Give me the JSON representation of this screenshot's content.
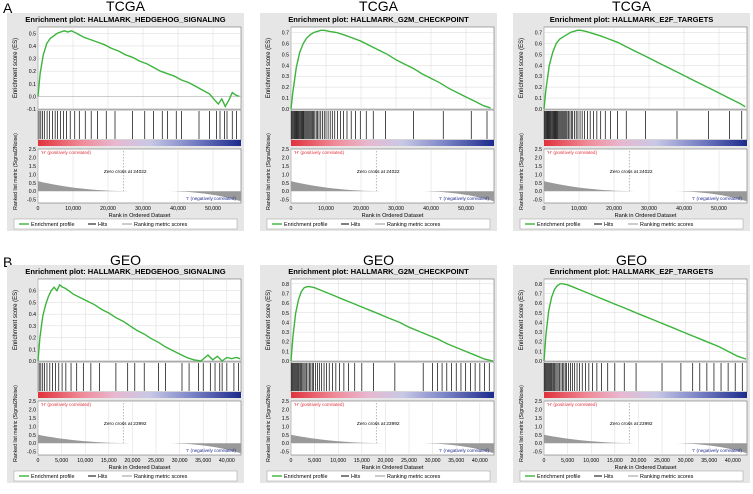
{
  "rows": [
    {
      "label": "A",
      "source": "TCGA"
    },
    {
      "label": "B",
      "source": "GEO"
    }
  ],
  "common": {
    "es_ylabel": "Enrichment score (ES)",
    "rank_ylabel": "Ranked list metric (Signal2Noise)",
    "xlabel": "Rank in Ordered Dataset",
    "pos_label": "'H' (positively correlated)",
    "neg_label": "'I' (negatively correlated)",
    "legend": [
      "Enrichment profile",
      "Hits",
      "Ranking metric scores"
    ],
    "colors": {
      "es_line": "#3cb43c",
      "hits": "#000000",
      "metric": "#9a9a9a",
      "pos": "#e0323c",
      "neg": "#1c2a8c",
      "panel_bg": "#e6e6e6"
    }
  },
  "chart_data": [
    {
      "type": "line",
      "row": 0,
      "col": 0,
      "source": "TCGA",
      "title": "Enrichment plot: HALLMARK_HEDGEHOG_SIGNALING",
      "zero_cross": "Zero cross at 24022",
      "xlim": [
        0,
        58000
      ],
      "x_ticks": [
        0,
        10000,
        20000,
        30000,
        40000,
        50000
      ],
      "x_tick_labels": [
        "0",
        "10,000",
        "20,000",
        "30,000",
        "40,000",
        "50,000"
      ],
      "ylim": [
        -0.1,
        0.55
      ],
      "y_ticks": [
        -0.1,
        0.0,
        0.1,
        0.2,
        0.3,
        0.4,
        0.5
      ],
      "y_tick_labels": [
        "-0.1",
        "0.0",
        "0.1",
        "0.2",
        "0.3",
        "0.4",
        "0.5"
      ],
      "es_x": [
        0,
        600,
        1500,
        2500,
        3500,
        4500,
        5500,
        6500,
        7500,
        8500,
        9500,
        11000,
        13000,
        15000,
        17000,
        19000,
        21000,
        23000,
        25000,
        27000,
        29000,
        31000,
        33000,
        35000,
        37000,
        39000,
        41000,
        43000,
        45000,
        47000,
        49000,
        50500,
        51500,
        52500,
        53500,
        54500,
        55500,
        56500,
        57500
      ],
      "es_y": [
        0,
        0.18,
        0.33,
        0.42,
        0.46,
        0.48,
        0.5,
        0.51,
        0.52,
        0.51,
        0.52,
        0.5,
        0.47,
        0.45,
        0.43,
        0.41,
        0.38,
        0.36,
        0.33,
        0.31,
        0.28,
        0.26,
        0.23,
        0.2,
        0.18,
        0.16,
        0.13,
        0.11,
        0.08,
        0.05,
        0.02,
        -0.03,
        -0.06,
        -0.02,
        -0.08,
        -0.03,
        0.03,
        0.01,
        0.0
      ],
      "hits": [
        300,
        800,
        1300,
        1800,
        2600,
        3300,
        4100,
        4900,
        5600,
        6400,
        7300,
        8100,
        9200,
        10500,
        11800,
        13500,
        15200,
        17000,
        19500,
        22000,
        27000,
        30500,
        33000,
        35500,
        37000,
        39500,
        41000,
        46000,
        49000,
        51000,
        52000,
        53300,
        54000,
        55500,
        56700
      ],
      "rank_ylim": [
        -0.7,
        2.5
      ],
      "rank_ticks": [
        2.5,
        2.0,
        1.5,
        1.0,
        0.5,
        0.0,
        -0.5
      ],
      "rank_tick_labels": [
        "2.5",
        "2.0",
        "1.5",
        "1.0",
        "0.5",
        "0.0",
        "-0.5"
      ],
      "rank_start": 0.6,
      "rank_end": -0.6
    },
    {
      "type": "line",
      "row": 0,
      "col": 1,
      "source": "TCGA",
      "title": "Enrichment plot: HALLMARK_G2M_CHECKPOINT",
      "zero_cross": "Zero cross at 24022",
      "xlim": [
        0,
        58000
      ],
      "x_ticks": [
        0,
        10000,
        20000,
        30000,
        40000,
        50000
      ],
      "x_tick_labels": [
        "0",
        "10,000",
        "20,000",
        "30,000",
        "40,000",
        "50,000"
      ],
      "ylim": [
        0.0,
        0.75
      ],
      "y_ticks": [
        0.0,
        0.1,
        0.2,
        0.3,
        0.4,
        0.5,
        0.6,
        0.7
      ],
      "y_tick_labels": [
        "0.0",
        "0.1",
        "0.2",
        "0.3",
        "0.4",
        "0.5",
        "0.6",
        "0.7"
      ],
      "es_x": [
        0,
        500,
        1500,
        2500,
        3500,
        4500,
        5500,
        6500,
        7500,
        8500,
        9500,
        11000,
        13000,
        15000,
        17500,
        20000,
        22500,
        25000,
        27500,
        30000,
        32500,
        35000,
        37500,
        40000,
        42500,
        45000,
        47500,
        50000,
        52500,
        55000,
        57000
      ],
      "es_y": [
        0,
        0.15,
        0.38,
        0.52,
        0.6,
        0.65,
        0.68,
        0.7,
        0.71,
        0.72,
        0.72,
        0.71,
        0.7,
        0.68,
        0.65,
        0.62,
        0.58,
        0.54,
        0.5,
        0.45,
        0.41,
        0.37,
        0.32,
        0.28,
        0.24,
        0.19,
        0.15,
        0.11,
        0.07,
        0.03,
        0.01
      ],
      "hits": [
        200,
        450,
        700,
        950,
        1200,
        1450,
        1700,
        1950,
        2200,
        2450,
        2700,
        2950,
        3200,
        3450,
        3700,
        4000,
        4300,
        4600,
        4900,
        5200,
        5500,
        5800,
        6100,
        6400,
        6800,
        7200,
        7600,
        8000,
        8500,
        9000,
        9500,
        10000,
        10600,
        11200,
        11800,
        12500,
        13300,
        14100,
        15000,
        16000,
        17200,
        18400,
        19800,
        21500,
        23500,
        27000,
        35000,
        43500,
        51500,
        56000
      ],
      "rank_ylim": [
        -0.7,
        2.5
      ],
      "rank_ticks": [
        2.5,
        2.0,
        1.5,
        1.0,
        0.5,
        0.0,
        -0.5
      ],
      "rank_tick_labels": [
        "2.5",
        "2.0",
        "1.5",
        "1.0",
        "0.5",
        "0.0",
        "-0.5"
      ],
      "rank_start": 0.6,
      "rank_end": -0.6
    },
    {
      "type": "line",
      "row": 0,
      "col": 2,
      "source": "TCGA",
      "title": "Enrichment plot: HALLMARK_E2F_TARGETS",
      "zero_cross": "Zero cross at 24022",
      "xlim": [
        0,
        58000
      ],
      "x_ticks": [
        0,
        10000,
        20000,
        30000,
        40000,
        50000
      ],
      "x_tick_labels": [
        "0",
        "10,000",
        "20,000",
        "30,000",
        "40,000",
        "50,000"
      ],
      "ylim": [
        0.0,
        0.75
      ],
      "y_ticks": [
        0.0,
        0.1,
        0.2,
        0.3,
        0.4,
        0.5,
        0.6,
        0.7
      ],
      "y_tick_labels": [
        "0.0",
        "0.1",
        "0.2",
        "0.3",
        "0.4",
        "0.5",
        "0.6",
        "0.7"
      ],
      "es_x": [
        0,
        500,
        1500,
        2500,
        3500,
        4500,
        5500,
        6500,
        7500,
        8500,
        9500,
        10500,
        12000,
        14000,
        16000,
        18500,
        21000,
        23500,
        26000,
        28500,
        31000,
        33500,
        36000,
        38500,
        41000,
        43500,
        46000,
        48500,
        51000,
        53500,
        56000,
        57500
      ],
      "es_y": [
        0,
        0.17,
        0.4,
        0.52,
        0.6,
        0.64,
        0.66,
        0.68,
        0.7,
        0.71,
        0.72,
        0.72,
        0.71,
        0.69,
        0.67,
        0.64,
        0.61,
        0.57,
        0.53,
        0.49,
        0.45,
        0.41,
        0.37,
        0.33,
        0.29,
        0.25,
        0.21,
        0.17,
        0.13,
        0.09,
        0.05,
        0.02
      ],
      "hits": [
        200,
        400,
        650,
        900,
        1150,
        1400,
        1650,
        1900,
        2150,
        2400,
        2650,
        2900,
        3150,
        3400,
        3650,
        3900,
        4200,
        4500,
        4800,
        5100,
        5400,
        5700,
        6000,
        6300,
        6600,
        7000,
        7400,
        7800,
        8200,
        8700,
        9200,
        9700,
        10300,
        10900,
        11600,
        12400,
        13200,
        14100,
        15100,
        16200,
        17500,
        19000,
        21000,
        23500,
        29000,
        38000,
        47000,
        53000,
        56500
      ],
      "rank_ylim": [
        -0.7,
        2.5
      ],
      "rank_ticks": [
        2.5,
        2.0,
        1.5,
        1.0,
        0.5,
        0.0,
        -0.5
      ],
      "rank_tick_labels": [
        "2.5",
        "2.0",
        "1.5",
        "1.0",
        "0.5",
        "0.0",
        "-0.5"
      ],
      "rank_start": 0.6,
      "rank_end": -0.6
    },
    {
      "type": "line",
      "row": 1,
      "col": 0,
      "source": "GEO",
      "title": "Enrichment plot: HALLMARK_HEDGEHOG_SIGNALING",
      "zero_cross": "Zero cross at 23992",
      "xlim": [
        0,
        43000
      ],
      "x_ticks": [
        0,
        5000,
        10000,
        15000,
        20000,
        25000,
        30000,
        35000,
        40000
      ],
      "x_tick_labels": [
        "0",
        "5,000",
        "10,000",
        "15,000",
        "20,000",
        "25,000",
        "30,000",
        "35,000",
        "40,000"
      ],
      "ylim": [
        0.0,
        0.7
      ],
      "y_ticks": [
        0.0,
        0.1,
        0.2,
        0.3,
        0.4,
        0.5,
        0.6
      ],
      "y_tick_labels": [
        "0.0",
        "0.1",
        "0.2",
        "0.3",
        "0.4",
        "0.5",
        "0.6"
      ],
      "es_x": [
        0,
        400,
        1000,
        1600,
        2200,
        2800,
        3400,
        4000,
        4600,
        5200,
        5800,
        6500,
        7500,
        9000,
        10500,
        12000,
        13500,
        15000,
        16500,
        18000,
        19500,
        21000,
        22500,
        24000,
        25500,
        27000,
        28500,
        30000,
        31500,
        33000,
        34500,
        36000,
        37000,
        38000,
        39000,
        40000,
        41000,
        42000,
        42800
      ],
      "es_y": [
        0,
        0.2,
        0.38,
        0.48,
        0.55,
        0.6,
        0.63,
        0.6,
        0.65,
        0.63,
        0.62,
        0.6,
        0.57,
        0.54,
        0.51,
        0.48,
        0.44,
        0.41,
        0.37,
        0.34,
        0.3,
        0.26,
        0.23,
        0.19,
        0.16,
        0.12,
        0.09,
        0.06,
        0.03,
        0.01,
        0.0,
        0.05,
        0.01,
        0.04,
        0.0,
        0.03,
        0.02,
        0.03,
        0.02
      ],
      "hits": [
        250,
        600,
        1000,
        1400,
        1900,
        2500,
        3100,
        3700,
        4400,
        5100,
        5900,
        7000,
        8200,
        9600,
        11200,
        13000,
        16500,
        19000,
        20500,
        22500,
        25500,
        27000,
        30500,
        32000,
        34000,
        35000,
        36500,
        37500,
        38500,
        39000,
        40000,
        41500,
        42500
      ],
      "rank_ylim": [
        -0.7,
        2.5
      ],
      "rank_ticks": [
        2.5,
        2.0,
        1.5,
        1.0,
        0.5,
        0.0,
        -0.5
      ],
      "rank_tick_labels": [
        "2.5",
        "2.0",
        "1.5",
        "1.0",
        "0.5",
        "0.0",
        "-0.5"
      ],
      "rank_start": 0.5,
      "rank_end": -0.6
    },
    {
      "type": "line",
      "row": 1,
      "col": 1,
      "source": "GEO",
      "title": "Enrichment plot: HALLMARK_G2M_CHECKPOINT",
      "zero_cross": "Zero cross at 23992",
      "xlim": [
        0,
        43000
      ],
      "x_ticks": [
        0,
        5000,
        10000,
        15000,
        20000,
        25000,
        30000,
        35000,
        40000
      ],
      "x_tick_labels": [
        "0",
        "5,000",
        "10,000",
        "15,000",
        "20,000",
        "25,000",
        "30,000",
        "35,000",
        "40,000"
      ],
      "ylim": [
        0.0,
        0.85
      ],
      "y_ticks": [
        0.0,
        0.1,
        0.2,
        0.3,
        0.4,
        0.5,
        0.6,
        0.7,
        0.8
      ],
      "y_tick_labels": [
        "0.0",
        "0.1",
        "0.2",
        "0.3",
        "0.4",
        "0.5",
        "0.6",
        "0.7",
        "0.8"
      ],
      "es_x": [
        0,
        400,
        1000,
        1600,
        2200,
        2800,
        3400,
        4000,
        5000,
        6000,
        7500,
        9000,
        11000,
        13000,
        15000,
        17000,
        19000,
        21000,
        23000,
        25000,
        27000,
        29000,
        31000,
        33000,
        35000,
        37000,
        39000,
        41000,
        42800
      ],
      "es_y": [
        0,
        0.25,
        0.5,
        0.64,
        0.72,
        0.76,
        0.77,
        0.77,
        0.76,
        0.74,
        0.71,
        0.68,
        0.64,
        0.6,
        0.56,
        0.52,
        0.48,
        0.44,
        0.4,
        0.35,
        0.31,
        0.27,
        0.23,
        0.18,
        0.14,
        0.1,
        0.06,
        0.02,
        0.0
      ],
      "hits": [
        150,
        350,
        550,
        750,
        950,
        1150,
        1350,
        1550,
        1750,
        2000,
        2250,
        2500,
        2750,
        3000,
        3300,
        3600,
        3900,
        4200,
        4500,
        4800,
        5200,
        5600,
        6000,
        6500,
        7000,
        7500,
        8100,
        8800,
        9500,
        10300,
        11200,
        12200,
        13500,
        15000,
        17500,
        22000,
        28000,
        30000,
        31000,
        32000,
        33000,
        34000,
        35000,
        36000,
        37000,
        38000,
        39000,
        40000,
        41000,
        42000
      ],
      "rank_ylim": [
        -0.7,
        2.5
      ],
      "rank_ticks": [
        2.5,
        2.0,
        1.5,
        1.0,
        0.5,
        0.0,
        -0.5
      ],
      "rank_tick_labels": [
        "2.5",
        "2.0",
        "1.5",
        "1.0",
        "0.5",
        "0.0",
        "-0.5"
      ],
      "rank_start": 0.5,
      "rank_end": -0.6
    },
    {
      "type": "line",
      "row": 1,
      "col": 2,
      "source": "GEO",
      "title": "Enrichment plot: HALLMARK_E2F_TARGETS",
      "zero_cross": "Zero cross at 23992",
      "xlim": [
        0,
        43000
      ],
      "x_ticks": [
        0,
        5000,
        10000,
        15000,
        20000,
        25000,
        30000,
        35000,
        40000
      ],
      "x_tick_labels": [
        "0",
        "5,000",
        "10,000",
        "15,000",
        "20,000",
        "25,000",
        "30,000",
        "35,000",
        "40,000"
      ],
      "ylim": [
        0.0,
        0.85
      ],
      "y_ticks": [
        0.0,
        0.1,
        0.2,
        0.3,
        0.4,
        0.5,
        0.6,
        0.7,
        0.8
      ],
      "y_tick_labels": [
        "0.0",
        "0.1",
        "0.2",
        "0.3",
        "0.4",
        "0.5",
        "0.6",
        "0.7",
        "0.8"
      ],
      "es_x": [
        0,
        400,
        1000,
        1600,
        2200,
        2800,
        3400,
        4000,
        5000,
        6000,
        7500,
        9000,
        11000,
        13000,
        15000,
        17000,
        19000,
        21000,
        23000,
        25000,
        27000,
        29000,
        31000,
        33000,
        35000,
        37000,
        39000,
        41000,
        42800
      ],
      "es_y": [
        0,
        0.27,
        0.52,
        0.66,
        0.74,
        0.78,
        0.8,
        0.8,
        0.79,
        0.77,
        0.74,
        0.71,
        0.67,
        0.63,
        0.59,
        0.55,
        0.51,
        0.47,
        0.43,
        0.39,
        0.35,
        0.31,
        0.27,
        0.23,
        0.19,
        0.15,
        0.1,
        0.05,
        0.02
      ],
      "hits": [
        150,
        350,
        550,
        750,
        950,
        1150,
        1350,
        1550,
        1750,
        2000,
        2250,
        2500,
        2750,
        3000,
        3300,
        3600,
        3900,
        4200,
        4500,
        4800,
        5200,
        5600,
        6000,
        6500,
        7000,
        7500,
        8100,
        8800,
        9500,
        10300,
        11200,
        12200,
        13500,
        15000,
        17000,
        19500,
        25000,
        29000,
        31500,
        33000,
        34500,
        36000,
        37500,
        39000,
        40500,
        42000
      ],
      "rank_ylim": [
        -0.7,
        2.5
      ],
      "rank_ticks": [
        2.5,
        2.0,
        1.5,
        1.0,
        0.5,
        0.0,
        -0.5
      ],
      "rank_tick_labels": [
        "2.5",
        "2.0",
        "1.5",
        "1.0",
        "0.5",
        "0.0",
        "-0.5"
      ],
      "rank_start": 0.5,
      "rank_end": -0.6
    }
  ]
}
